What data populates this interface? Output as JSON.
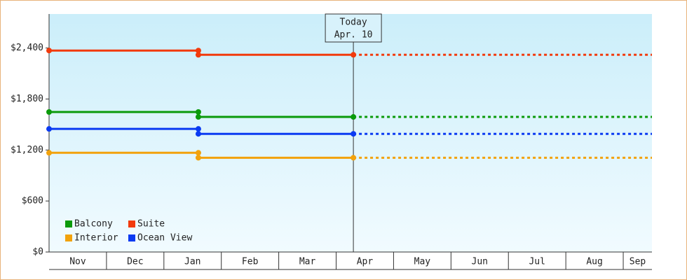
{
  "chart_data": {
    "type": "step-line",
    "categories": [
      "Nov",
      "Dec",
      "Jan",
      "Feb",
      "Mar",
      "Apr",
      "May",
      "Jun",
      "Jul",
      "Aug",
      "Sep"
    ],
    "xlim": [
      0,
      10.5
    ],
    "ylim": [
      0,
      2800
    ],
    "yticks": [
      {
        "value": 0,
        "label": "$0"
      },
      {
        "value": 600,
        "label": "$600"
      },
      {
        "value": 1200,
        "label": "$1,200"
      },
      {
        "value": 1800,
        "label": "$1,800"
      },
      {
        "value": 2400,
        "label": "$2,400"
      }
    ],
    "today": {
      "label": [
        "Today",
        "Apr. 10"
      ],
      "x": 5.3
    },
    "legend": "bottom-left",
    "series": [
      {
        "name": "Balcony",
        "color": "#0a9a0a",
        "x": [
          0,
          2.6,
          2.6,
          5.3
        ],
        "values": [
          1647,
          1647,
          1589,
          1589
        ]
      },
      {
        "name": "Suite",
        "color": "#f23a0c",
        "x": [
          0,
          2.6,
          2.6,
          5.3
        ],
        "values": [
          2370,
          2370,
          2320,
          2320
        ]
      },
      {
        "name": "Interior",
        "color": "#f2a20c",
        "x": [
          0,
          2.6,
          2.6,
          5.3
        ],
        "values": [
          1167,
          1167,
          1109,
          1109
        ]
      },
      {
        "name": "Ocean View",
        "color": "#0a3af2",
        "x": [
          0,
          2.6,
          2.6,
          5.3
        ],
        "values": [
          1448,
          1448,
          1390,
          1390
        ]
      }
    ]
  }
}
